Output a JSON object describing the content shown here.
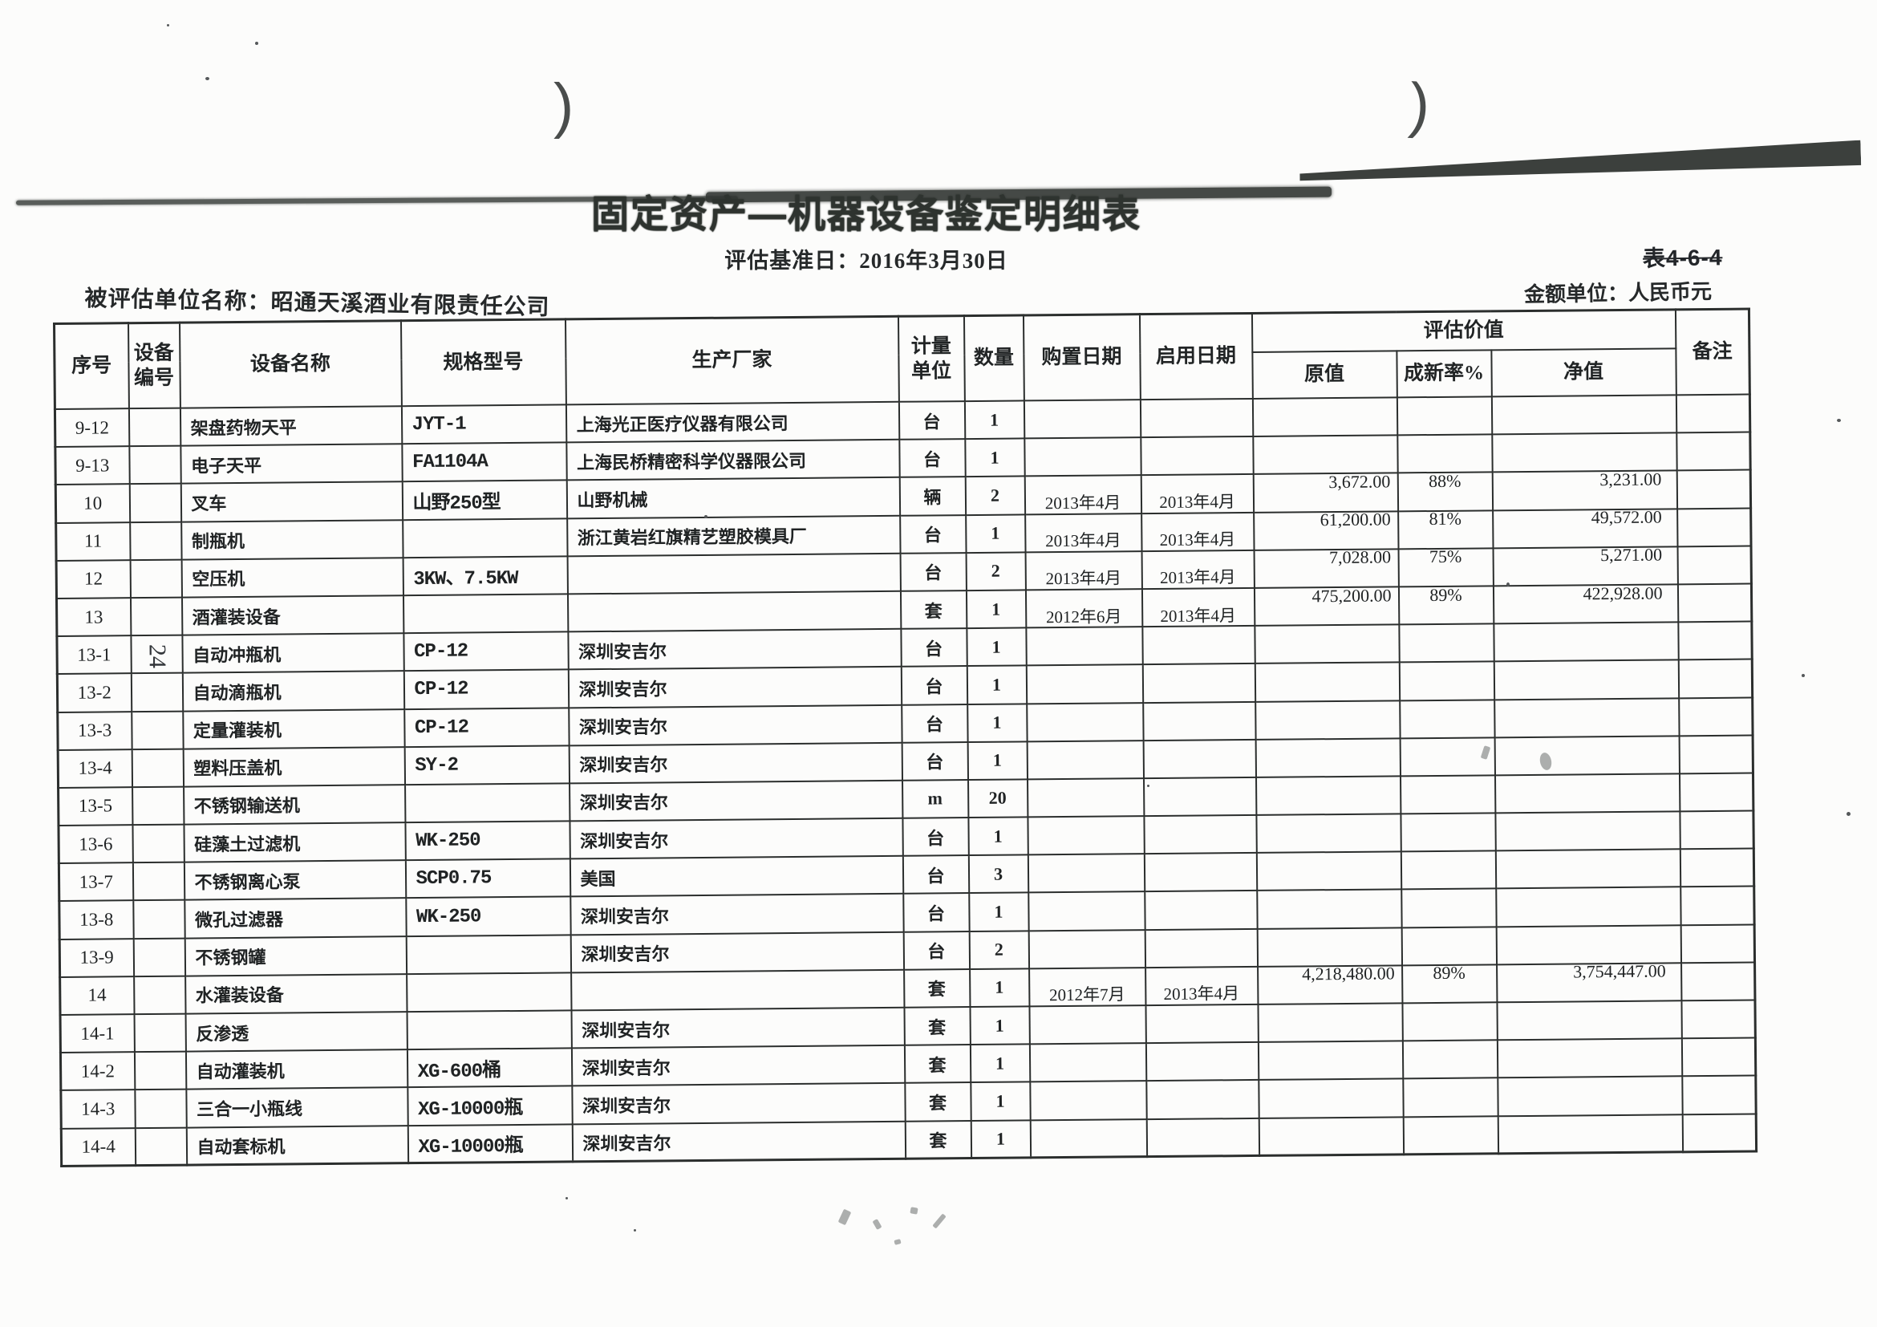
{
  "page": {
    "paren_left": ")",
    "paren_right": ")",
    "title": "固定资产—机器设备鉴定明细表",
    "subtitle": "评估基准日：2016年3月30日",
    "table_code": "表4-6-4",
    "currency_label": "金额单位：人民币元",
    "entity_label": "被评估单位名称：昭通天溪酒业有限责任公司"
  },
  "table": {
    "headers": {
      "seq": "序号",
      "no": "设备\n编号",
      "name": "设备名称",
      "model": "规格型号",
      "mfr": "生产厂家",
      "unit": "计量\n单位",
      "qty": "数量",
      "buy": "购置日期",
      "use": "启用日期",
      "appraisal": "评估价值",
      "orig": "原值",
      "rate": "成新率%",
      "net": "净值",
      "rem": "备注"
    },
    "rows": [
      {
        "seq": "9-12",
        "no": "",
        "name": "架盘药物天平",
        "model": "JYT-1",
        "mfr": "上海光正医疗仪器有限公司",
        "unit": "台",
        "qty": "1",
        "buy": "",
        "use": "",
        "orig": "",
        "rate": "",
        "net": "",
        "rem": ""
      },
      {
        "seq": "9-13",
        "no": "",
        "name": "电子天平",
        "model": "FA1104A",
        "mfr": "上海民桥精密科学仪器限公司",
        "unit": "台",
        "qty": "1",
        "buy": "",
        "use": "",
        "orig": "",
        "rate": "",
        "net": "",
        "rem": ""
      },
      {
        "seq": "10",
        "no": "",
        "name": "叉车",
        "model": "山野250型",
        "mfr": "山野机械",
        "unit": "辆",
        "qty": "2",
        "buy": "2013年4月",
        "use": "2013年4月",
        "orig": "3,672.00",
        "rate": "88%",
        "net": "3,231.00",
        "rem": ""
      },
      {
        "seq": "11",
        "no": "",
        "name": "制瓶机",
        "model": "",
        "mfr": "浙江黄岩红旗精艺塑胶模具厂",
        "unit": "台",
        "qty": "1",
        "buy": "2013年4月",
        "use": "2013年4月",
        "orig": "61,200.00",
        "rate": "81%",
        "net": "49,572.00",
        "rem": ""
      },
      {
        "seq": "12",
        "no": "",
        "name": "空压机",
        "model": "3KW、7.5KW",
        "mfr": "",
        "unit": "台",
        "qty": "2",
        "buy": "2013年4月",
        "use": "2013年4月",
        "orig": "7,028.00",
        "rate": "75%",
        "net": "5,271.00",
        "rem": ""
      },
      {
        "seq": "13",
        "no": "",
        "name": "酒灌装设备",
        "model": "",
        "mfr": "",
        "unit": "套",
        "qty": "1",
        "buy": "2012年6月",
        "use": "2013年4月",
        "orig": "475,200.00",
        "rate": "89%",
        "net": "422,928.00",
        "rem": ""
      },
      {
        "seq": "13-1",
        "no": "24",
        "name": "自动冲瓶机",
        "model": "CP-12",
        "mfr": "深圳安吉尔",
        "unit": "台",
        "qty": "1",
        "buy": "",
        "use": "",
        "orig": "",
        "rate": "",
        "net": "",
        "rem": ""
      },
      {
        "seq": "13-2",
        "no": "",
        "name": "自动滴瓶机",
        "model": "CP-12",
        "mfr": "深圳安吉尔",
        "unit": "台",
        "qty": "1",
        "buy": "",
        "use": "",
        "orig": "",
        "rate": "",
        "net": "",
        "rem": ""
      },
      {
        "seq": "13-3",
        "no": "",
        "name": "定量灌装机",
        "model": "CP-12",
        "mfr": "深圳安吉尔",
        "unit": "台",
        "qty": "1",
        "buy": "",
        "use": "",
        "orig": "",
        "rate": "",
        "net": "",
        "rem": ""
      },
      {
        "seq": "13-4",
        "no": "",
        "name": "塑料压盖机",
        "model": "SY-2",
        "mfr": "深圳安吉尔",
        "unit": "台",
        "qty": "1",
        "buy": "",
        "use": "",
        "orig": "",
        "rate": "",
        "net": "",
        "rem": ""
      },
      {
        "seq": "13-5",
        "no": "",
        "name": "不锈钢输送机",
        "model": "",
        "mfr": "深圳安吉尔",
        "unit": "m",
        "qty": "20",
        "buy": "",
        "use": "",
        "orig": "",
        "rate": "",
        "net": "",
        "rem": ""
      },
      {
        "seq": "13-6",
        "no": "",
        "name": "硅藻土过滤机",
        "model": "WK-250",
        "mfr": "深圳安吉尔",
        "unit": "台",
        "qty": "1",
        "buy": "",
        "use": "",
        "orig": "",
        "rate": "",
        "net": "",
        "rem": ""
      },
      {
        "seq": "13-7",
        "no": "",
        "name": "不锈钢离心泵",
        "model": "SCP0.75",
        "mfr": "美国",
        "unit": "台",
        "qty": "3",
        "buy": "",
        "use": "",
        "orig": "",
        "rate": "",
        "net": "",
        "rem": ""
      },
      {
        "seq": "13-8",
        "no": "",
        "name": "微孔过滤器",
        "model": "WK-250",
        "mfr": "深圳安吉尔",
        "unit": "台",
        "qty": "1",
        "buy": "",
        "use": "",
        "orig": "",
        "rate": "",
        "net": "",
        "rem": ""
      },
      {
        "seq": "13-9",
        "no": "",
        "name": "不锈钢罐",
        "model": "",
        "mfr": "深圳安吉尔",
        "unit": "台",
        "qty": "2",
        "buy": "",
        "use": "",
        "orig": "",
        "rate": "",
        "net": "",
        "rem": ""
      },
      {
        "seq": "14",
        "no": "",
        "name": "水灌装设备",
        "model": "",
        "mfr": "",
        "unit": "套",
        "qty": "1",
        "buy": "2012年7月",
        "use": "2013年4月",
        "orig": "4,218,480.00",
        "rate": "89%",
        "net": "3,754,447.00",
        "rem": ""
      },
      {
        "seq": "14-1",
        "no": "",
        "name": "反渗透",
        "model": "",
        "mfr": "深圳安吉尔",
        "unit": "套",
        "qty": "1",
        "buy": "",
        "use": "",
        "orig": "",
        "rate": "",
        "net": "",
        "rem": ""
      },
      {
        "seq": "14-2",
        "no": "",
        "name": "自动灌装机",
        "model": "XG-600桶",
        "mfr": "深圳安吉尔",
        "unit": "套",
        "qty": "1",
        "buy": "",
        "use": "",
        "orig": "",
        "rate": "",
        "net": "",
        "rem": ""
      },
      {
        "seq": "14-3",
        "no": "",
        "name": "三合一小瓶线",
        "model": "XG-10000瓶",
        "mfr": "深圳安吉尔",
        "unit": "套",
        "qty": "1",
        "buy": "",
        "use": "",
        "orig": "",
        "rate": "",
        "net": "",
        "rem": ""
      },
      {
        "seq": "14-4",
        "no": "",
        "name": "自动套标机",
        "model": "XG-10000瓶",
        "mfr": "深圳安吉尔",
        "unit": "套",
        "qty": "1",
        "buy": "",
        "use": "",
        "orig": "",
        "rate": "",
        "net": "",
        "rem": ""
      }
    ]
  }
}
